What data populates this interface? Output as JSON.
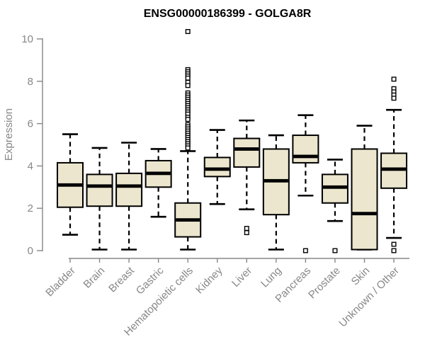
{
  "chart_data": {
    "type": "boxplot",
    "title": "ENSG00000186399 - GOLGA8R",
    "ylabel": "Expression",
    "xlabel": "",
    "ylim": [
      0,
      10
    ],
    "yticks": [
      0,
      2,
      4,
      6,
      8,
      10
    ],
    "grid": false,
    "legend": null,
    "categories": [
      "Bladder",
      "Brain",
      "Breast",
      "Gastric",
      "Hematopoietic cells",
      "Kidney",
      "Liver",
      "Lung",
      "Pancreas",
      "Prostate",
      "Skin",
      "Unknown / Other"
    ],
    "boxes": [
      {
        "category": "Bladder",
        "low": 0.75,
        "q1": 2.05,
        "median": 3.1,
        "q3": 4.15,
        "high": 5.5,
        "outliers": []
      },
      {
        "category": "Brain",
        "low": 0.05,
        "q1": 2.1,
        "median": 3.05,
        "q3": 3.6,
        "high": 4.85,
        "outliers": []
      },
      {
        "category": "Breast",
        "low": 0.05,
        "q1": 2.1,
        "median": 3.05,
        "q3": 3.65,
        "high": 5.1,
        "outliers": []
      },
      {
        "category": "Gastric",
        "low": 1.6,
        "q1": 3.0,
        "median": 3.65,
        "q3": 4.25,
        "high": 4.8,
        "outliers": []
      },
      {
        "category": "Hematopoietic cells",
        "low": 0.05,
        "q1": 0.65,
        "median": 1.45,
        "q3": 2.25,
        "high": 4.7,
        "outliers": [
          10.35,
          8.55,
          8.45,
          8.35,
          8.25,
          8.15,
          7.95,
          7.8,
          7.45,
          7.35,
          7.25,
          7.15,
          7.05,
          6.95,
          6.85,
          6.75,
          6.65,
          6.55,
          6.45,
          6.3,
          6.2,
          5.95,
          5.85,
          5.75,
          5.65,
          5.55,
          5.45,
          5.35,
          5.25,
          5.15,
          5.05,
          4.95,
          4.85
        ]
      },
      {
        "category": "Kidney",
        "low": 2.2,
        "q1": 3.5,
        "median": 3.85,
        "q3": 4.4,
        "high": 5.7,
        "outliers": []
      },
      {
        "category": "Liver",
        "low": 1.95,
        "q1": 3.95,
        "median": 4.8,
        "q3": 5.3,
        "high": 6.15,
        "outliers": [
          1.05,
          0.85
        ]
      },
      {
        "category": "Lung",
        "low": 0.05,
        "q1": 1.7,
        "median": 3.3,
        "q3": 4.8,
        "high": 5.45,
        "outliers": []
      },
      {
        "category": "Pancreas",
        "low": 2.6,
        "q1": 4.15,
        "median": 4.45,
        "q3": 5.45,
        "high": 6.4,
        "outliers": [
          0.0
        ]
      },
      {
        "category": "Prostate",
        "low": 1.4,
        "q1": 2.25,
        "median": 3.0,
        "q3": 3.6,
        "high": 4.3,
        "outliers": [
          0.0
        ]
      },
      {
        "category": "Skin",
        "low": 0.05,
        "q1": 0.05,
        "median": 1.75,
        "q3": 4.8,
        "high": 5.9,
        "outliers": []
      },
      {
        "category": "Unknown / Other",
        "low": 0.6,
        "q1": 2.95,
        "median": 3.85,
        "q3": 4.6,
        "high": 6.65,
        "outliers": [
          8.1,
          7.65,
          7.5,
          7.35,
          7.2,
          0.3,
          0.0
        ]
      }
    ],
    "colors": {
      "box_fill": "#ebe6cd",
      "box_stroke": "#000000",
      "median": "#000000",
      "whisker": "#000000",
      "outlier_stroke": "#000000",
      "outlier_fill": "#ffffff",
      "axis": "#878787",
      "tick_label": "#878787",
      "title": "#000000"
    }
  }
}
